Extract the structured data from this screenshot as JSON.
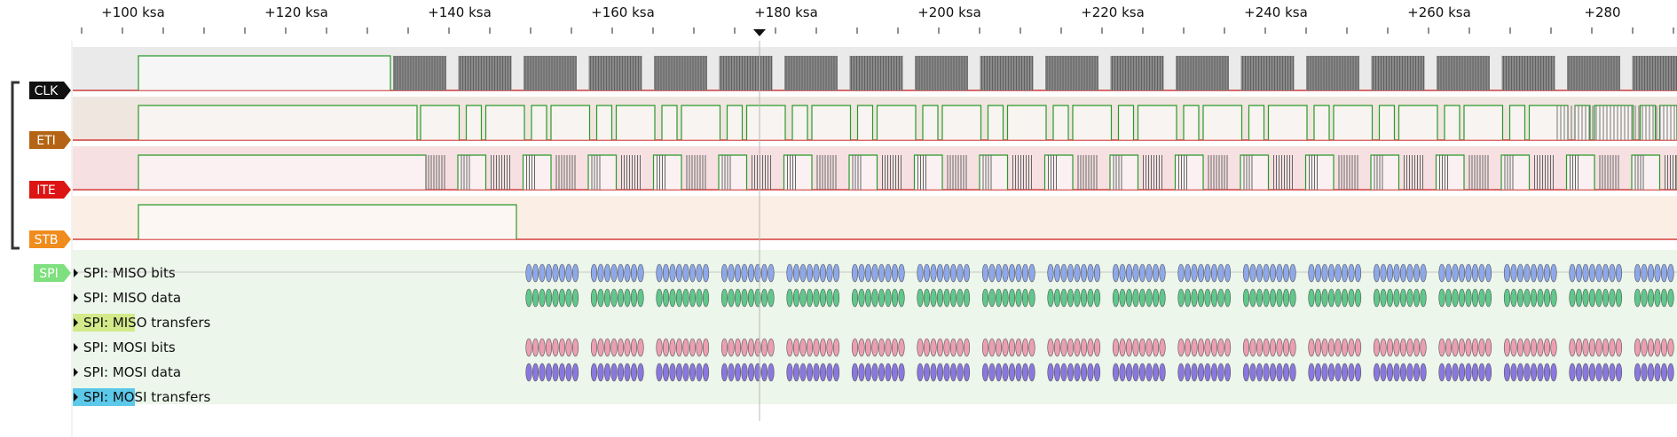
{
  "ruler": {
    "ticks": [
      "+100 ksa",
      "+120 ksa",
      "+140 ksa",
      "+160 ksa",
      "+180 ksa",
      "+200 ksa",
      "+220 ksa",
      "+240 ksa",
      "+260 ksa",
      "+280"
    ]
  },
  "channels": [
    {
      "name": "CLK",
      "tag_color": "#111111",
      "lane_color": "#eaeaea"
    },
    {
      "name": "ETI",
      "tag_color": "#b46414",
      "lane_color": "#f0e6e0"
    },
    {
      "name": "ITE",
      "tag_color": "#dc1414",
      "lane_color": "#f6e0e2"
    },
    {
      "name": "STB",
      "tag_color": "#f08c1e",
      "lane_color": "#fbeee4"
    }
  ],
  "decoder": {
    "tag": "SPI",
    "tag_color": "#7ee07e",
    "rows": [
      {
        "label": "SPI: MISO bits",
        "color": "#8fa8ea"
      },
      {
        "label": "SPI: MISO data",
        "color": "#5fc88a"
      },
      {
        "label": "SPI: MISO transfers",
        "color": "#d2ea8a",
        "highlight": true
      },
      {
        "label": "SPI: MOSI bits",
        "color": "#eb9fb0"
      },
      {
        "label": "SPI: MOSI data",
        "color": "#8a78e0"
      },
      {
        "label": "SPI: MOSI transfers",
        "color": "#5cc8ea",
        "highlight": true
      }
    ]
  }
}
